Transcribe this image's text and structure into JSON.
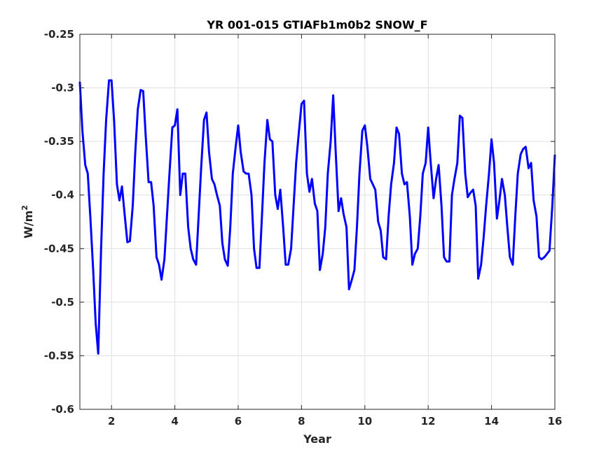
{
  "chart_data": {
    "type": "line",
    "title": "YR 001-015 GTIAFb1m0b2 SNOW_F",
    "xlabel": "Year",
    "ylabel_base": "W/m",
    "ylabel_sup": "2",
    "xlim": [
      1,
      16
    ],
    "ylim": [
      -0.6,
      -0.25
    ],
    "y_reversed": true,
    "grid": true,
    "x_ticks": [
      2,
      4,
      6,
      8,
      10,
      12,
      14,
      16
    ],
    "y_ticks": [
      -0.6,
      -0.55,
      -0.5,
      -0.45,
      -0.4,
      -0.35,
      -0.3,
      -0.25
    ],
    "x_tick_labels": [
      "2",
      "4",
      "6",
      "8",
      "10",
      "12",
      "14",
      "16"
    ],
    "y_tick_labels": [
      "-0.6",
      "-0.55",
      "-0.5",
      "-0.45",
      "-0.4",
      "-0.35",
      "-0.3",
      "-0.25"
    ],
    "series": [
      {
        "color": "#0000ff",
        "x": [
          1.0,
          1.08,
          1.17,
          1.25,
          1.33,
          1.42,
          1.5,
          1.58,
          1.67,
          1.75,
          1.83,
          1.92,
          2.0,
          2.08,
          2.17,
          2.25,
          2.33,
          2.42,
          2.5,
          2.58,
          2.67,
          2.75,
          2.83,
          2.92,
          3.0,
          3.08,
          3.17,
          3.25,
          3.33,
          3.42,
          3.5,
          3.58,
          3.67,
          3.75,
          3.83,
          3.92,
          4.0,
          4.08,
          4.17,
          4.25,
          4.33,
          4.42,
          4.5,
          4.58,
          4.67,
          4.75,
          4.83,
          4.92,
          5.0,
          5.08,
          5.17,
          5.25,
          5.33,
          5.42,
          5.5,
          5.58,
          5.67,
          5.75,
          5.83,
          5.92,
          6.0,
          6.08,
          6.17,
          6.25,
          6.33,
          6.42,
          6.5,
          6.58,
          6.67,
          6.75,
          6.83,
          6.92,
          7.0,
          7.08,
          7.17,
          7.25,
          7.33,
          7.42,
          7.5,
          7.58,
          7.67,
          7.75,
          7.83,
          7.92,
          8.0,
          8.08,
          8.17,
          8.25,
          8.33,
          8.42,
          8.5,
          8.58,
          8.67,
          8.75,
          8.83,
          8.92,
          9.0,
          9.08,
          9.17,
          9.25,
          9.33,
          9.42,
          9.5,
          9.58,
          9.67,
          9.75,
          9.83,
          9.92,
          10.0,
          10.08,
          10.17,
          10.25,
          10.33,
          10.42,
          10.5,
          10.58,
          10.67,
          10.75,
          10.83,
          10.92,
          11.0,
          11.08,
          11.17,
          11.25,
          11.33,
          11.42,
          11.5,
          11.58,
          11.67,
          11.75,
          11.83,
          11.92,
          12.0,
          12.08,
          12.17,
          12.25,
          12.33,
          12.42,
          12.5,
          12.58,
          12.67,
          12.75,
          12.83,
          12.92,
          13.0,
          13.08,
          13.17,
          13.25,
          13.33,
          13.42,
          13.5,
          13.58,
          13.67,
          13.75,
          13.83,
          13.92,
          14.0,
          14.08,
          14.17,
          14.25,
          14.33,
          14.42,
          14.5,
          14.58,
          14.67,
          14.75,
          14.83,
          14.92,
          15.0,
          15.08,
          15.17,
          15.25,
          15.33,
          15.42,
          15.5,
          15.58,
          15.67,
          15.75,
          15.83,
          15.92,
          16.0
        ],
        "y": [
          -0.295,
          -0.34,
          -0.372,
          -0.38,
          -0.42,
          -0.47,
          -0.52,
          -0.548,
          -0.45,
          -0.38,
          -0.33,
          -0.293,
          -0.293,
          -0.33,
          -0.39,
          -0.405,
          -0.392,
          -0.42,
          -0.444,
          -0.443,
          -0.41,
          -0.36,
          -0.32,
          -0.302,
          -0.303,
          -0.345,
          -0.388,
          -0.388,
          -0.41,
          -0.458,
          -0.465,
          -0.479,
          -0.46,
          -0.42,
          -0.38,
          -0.337,
          -0.335,
          -0.32,
          -0.4,
          -0.38,
          -0.38,
          -0.43,
          -0.45,
          -0.46,
          -0.465,
          -0.42,
          -0.375,
          -0.33,
          -0.323,
          -0.36,
          -0.385,
          -0.39,
          -0.4,
          -0.41,
          -0.445,
          -0.46,
          -0.466,
          -0.43,
          -0.38,
          -0.355,
          -0.335,
          -0.36,
          -0.378,
          -0.38,
          -0.38,
          -0.4,
          -0.45,
          -0.468,
          -0.468,
          -0.42,
          -0.37,
          -0.33,
          -0.348,
          -0.35,
          -0.4,
          -0.413,
          -0.395,
          -0.43,
          -0.465,
          -0.465,
          -0.45,
          -0.41,
          -0.37,
          -0.34,
          -0.315,
          -0.312,
          -0.38,
          -0.397,
          -0.385,
          -0.408,
          -0.415,
          -0.47,
          -0.455,
          -0.43,
          -0.38,
          -0.35,
          -0.307,
          -0.36,
          -0.415,
          -0.403,
          -0.418,
          -0.43,
          -0.488,
          -0.48,
          -0.47,
          -0.43,
          -0.38,
          -0.34,
          -0.335,
          -0.355,
          -0.385,
          -0.39,
          -0.395,
          -0.425,
          -0.433,
          -0.458,
          -0.46,
          -0.42,
          -0.39,
          -0.37,
          -0.337,
          -0.343,
          -0.38,
          -0.39,
          -0.388,
          -0.42,
          -0.465,
          -0.455,
          -0.45,
          -0.42,
          -0.38,
          -0.37,
          -0.337,
          -0.37,
          -0.403,
          -0.385,
          -0.372,
          -0.41,
          -0.458,
          -0.462,
          -0.462,
          -0.4,
          -0.385,
          -0.37,
          -0.326,
          -0.328,
          -0.38,
          -0.402,
          -0.398,
          -0.395,
          -0.41,
          -0.478,
          -0.465,
          -0.44,
          -0.41,
          -0.38,
          -0.348,
          -0.37,
          -0.422,
          -0.405,
          -0.385,
          -0.4,
          -0.43,
          -0.458,
          -0.465,
          -0.42,
          -0.38,
          -0.362,
          -0.357,
          -0.355,
          -0.375,
          -0.37,
          -0.405,
          -0.42,
          -0.458,
          -0.46,
          -0.458,
          -0.455,
          -0.452,
          -0.41,
          -0.363
        ]
      }
    ]
  }
}
